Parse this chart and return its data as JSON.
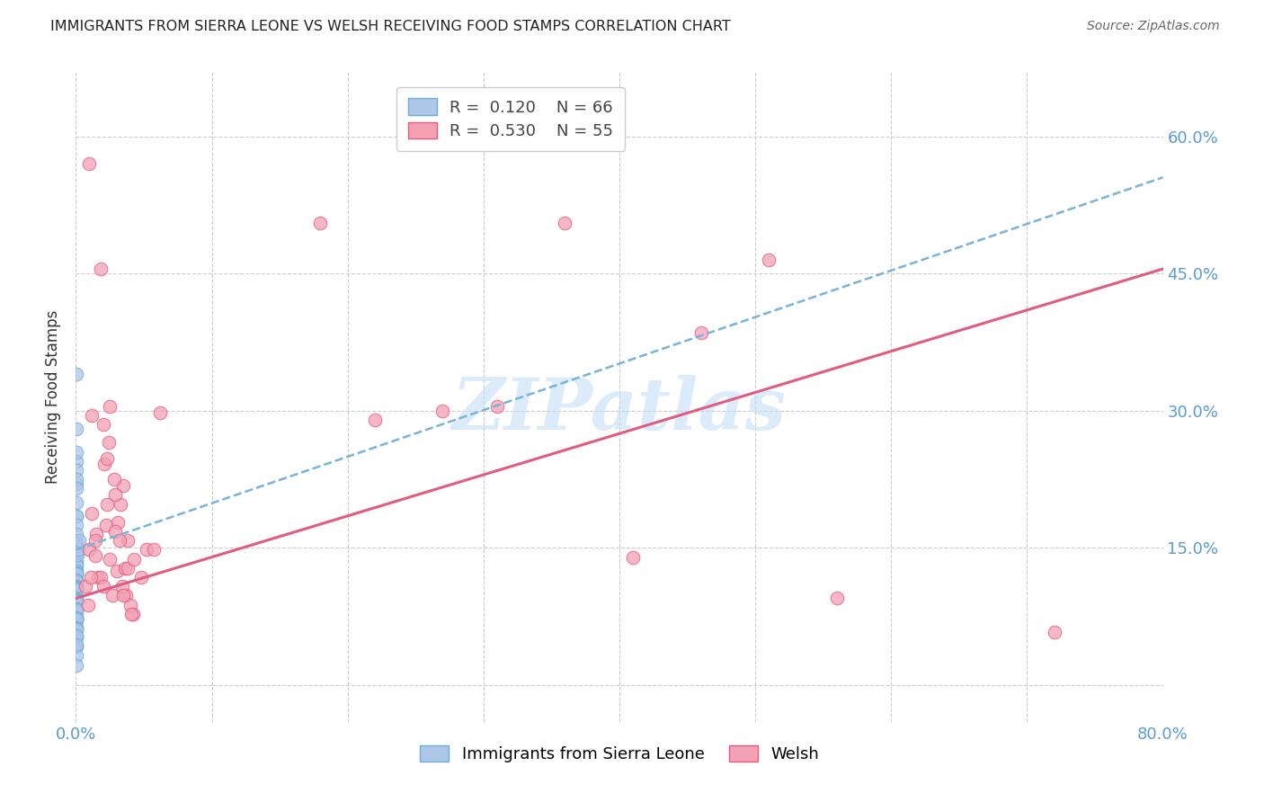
{
  "title": "IMMIGRANTS FROM SIERRA LEONE VS WELSH RECEIVING FOOD STAMPS CORRELATION CHART",
  "source": "Source: ZipAtlas.com",
  "ylabel": "Receiving Food Stamps",
  "xlim": [
    0.0,
    0.8
  ],
  "ylim": [
    -0.04,
    0.67
  ],
  "sierra_leone_color": "#aec6e8",
  "sierra_leone_edge_color": "#6baed6",
  "welsh_color": "#f4a0b5",
  "welsh_edge_color": "#e05c80",
  "sierra_leone_line_color": "#7ab3d8",
  "welsh_line_color": "#e05c80",
  "sierra_leone_R": 0.12,
  "sierra_leone_N": 66,
  "welsh_R": 0.53,
  "welsh_N": 55,
  "watermark": "ZIPatlas",
  "watermark_color": "#c5dff5",
  "legend_label_1": "Immigrants from Sierra Leone",
  "legend_label_2": "Welsh",
  "sl_trend_x0": 0.0,
  "sl_trend_y0": 0.148,
  "sl_trend_x1": 0.8,
  "sl_trend_y1": 0.555,
  "w_trend_x0": 0.0,
  "w_trend_y0": 0.095,
  "w_trend_x1": 0.8,
  "w_trend_y1": 0.455,
  "sierra_leone_x": [
    0.0002,
    0.0003,
    0.0004,
    0.0002,
    0.0005,
    0.0003,
    0.0001,
    0.0004,
    0.0006,
    0.0003,
    0.0002,
    0.0003,
    0.0004,
    0.0005,
    0.0002,
    0.0003,
    0.0002,
    0.0004,
    0.0003,
    0.0002,
    0.0002,
    0.0003,
    0.0002,
    0.0003,
    0.0004,
    0.0002,
    0.0003,
    0.0002,
    0.0004,
    0.0005,
    0.0002,
    0.0003,
    0.0004,
    0.0002,
    0.0003,
    0.0002,
    0.0003,
    0.0004,
    0.0002,
    0.0003,
    0.0002,
    0.0004,
    0.0003,
    0.0002,
    0.0005,
    0.0003,
    0.0002,
    0.0004,
    0.0003,
    0.0002,
    0.0006,
    0.0003,
    0.0004,
    0.0002,
    0.0003,
    0.0005,
    0.0003,
    0.0004,
    0.0012,
    0.001,
    0.0014,
    0.0018,
    0.0022,
    0.0003,
    0.0002,
    0.0004
  ],
  "sierra_leone_y": [
    0.34,
    0.28,
    0.245,
    0.255,
    0.235,
    0.22,
    0.2,
    0.185,
    0.225,
    0.215,
    0.185,
    0.175,
    0.165,
    0.155,
    0.152,
    0.145,
    0.143,
    0.135,
    0.132,
    0.131,
    0.125,
    0.123,
    0.122,
    0.121,
    0.122,
    0.115,
    0.113,
    0.112,
    0.113,
    0.114,
    0.108,
    0.107,
    0.106,
    0.105,
    0.104,
    0.095,
    0.094,
    0.093,
    0.092,
    0.091,
    0.084,
    0.083,
    0.082,
    0.081,
    0.083,
    0.074,
    0.073,
    0.072,
    0.071,
    0.073,
    0.063,
    0.062,
    0.061,
    0.053,
    0.052,
    0.054,
    0.043,
    0.042,
    0.148,
    0.143,
    0.152,
    0.148,
    0.158,
    0.033,
    0.022,
    0.044
  ],
  "welsh_x": [
    0.01,
    0.018,
    0.025,
    0.012,
    0.022,
    0.015,
    0.02,
    0.01,
    0.03,
    0.024,
    0.035,
    0.028,
    0.014,
    0.021,
    0.033,
    0.012,
    0.038,
    0.029,
    0.016,
    0.023,
    0.007,
    0.036,
    0.031,
    0.018,
    0.025,
    0.014,
    0.037,
    0.027,
    0.02,
    0.023,
    0.029,
    0.011,
    0.034,
    0.04,
    0.009,
    0.042,
    0.032,
    0.035,
    0.038,
    0.041,
    0.043,
    0.048,
    0.052,
    0.057,
    0.062,
    0.18,
    0.22,
    0.27,
    0.31,
    0.36,
    0.41,
    0.46,
    0.51,
    0.56,
    0.72
  ],
  "welsh_y": [
    0.57,
    0.455,
    0.305,
    0.295,
    0.175,
    0.165,
    0.285,
    0.148,
    0.125,
    0.265,
    0.218,
    0.225,
    0.142,
    0.242,
    0.198,
    0.188,
    0.158,
    0.208,
    0.118,
    0.248,
    0.108,
    0.128,
    0.178,
    0.118,
    0.138,
    0.158,
    0.098,
    0.098,
    0.108,
    0.198,
    0.168,
    0.118,
    0.108,
    0.088,
    0.088,
    0.078,
    0.158,
    0.098,
    0.128,
    0.078,
    0.138,
    0.118,
    0.148,
    0.148,
    0.298,
    0.505,
    0.29,
    0.3,
    0.305,
    0.505,
    0.14,
    0.385,
    0.465,
    0.095,
    0.058
  ]
}
